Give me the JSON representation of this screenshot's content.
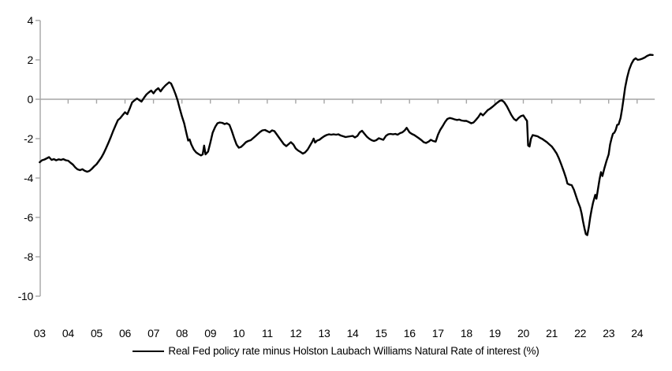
{
  "chart_data": {
    "type": "line",
    "title": "",
    "xlabel": "",
    "ylabel": "",
    "x_axis": {
      "tick_labels": [
        "03",
        "04",
        "05",
        "06",
        "07",
        "08",
        "09",
        "10",
        "11",
        "12",
        "13",
        "14",
        "15",
        "16",
        "17",
        "18",
        "19",
        "20",
        "21",
        "22",
        "23",
        "24"
      ],
      "tick_years": [
        2003,
        2004,
        2005,
        2006,
        2007,
        2008,
        2009,
        2010,
        2011,
        2012,
        2013,
        2014,
        2015,
        2016,
        2017,
        2018,
        2019,
        2020,
        2021,
        2022,
        2023,
        2024
      ],
      "min": 2003.0,
      "max": 2024.62
    },
    "y_axis": {
      "tick_labels": [
        "4",
        "2",
        "0",
        "-2",
        "-4",
        "-6",
        "-8",
        "-10"
      ],
      "ticks": [
        4,
        2,
        0,
        -2,
        -4,
        -6,
        -8,
        -10
      ],
      "min": -10,
      "max": 4
    },
    "grid": "off",
    "zero_baseline": true,
    "legend": {
      "position": "bottom-center",
      "label": "Real Fed policy rate minus Holston Laubach Williams Natural Rate of interest (%)"
    },
    "styles": {
      "line_color": "#000000",
      "axis_color": "#a6a6a6",
      "label_color": "#000000",
      "background": "#ffffff"
    },
    "series": [
      {
        "name": "Real Fed policy rate minus Holston Laubach Williams Natural Rate of interest (%)",
        "color": "#000000",
        "points": [
          [
            2003.0,
            -3.2
          ],
          [
            2003.08,
            -3.1
          ],
          [
            2003.17,
            -3.06
          ],
          [
            2003.25,
            -3.0
          ],
          [
            2003.33,
            -2.94
          ],
          [
            2003.42,
            -3.08
          ],
          [
            2003.5,
            -3.04
          ],
          [
            2003.58,
            -3.1
          ],
          [
            2003.67,
            -3.05
          ],
          [
            2003.75,
            -3.08
          ],
          [
            2003.83,
            -3.04
          ],
          [
            2003.92,
            -3.1
          ],
          [
            2004.0,
            -3.12
          ],
          [
            2004.08,
            -3.22
          ],
          [
            2004.17,
            -3.32
          ],
          [
            2004.25,
            -3.46
          ],
          [
            2004.33,
            -3.56
          ],
          [
            2004.42,
            -3.6
          ],
          [
            2004.5,
            -3.55
          ],
          [
            2004.58,
            -3.63
          ],
          [
            2004.67,
            -3.68
          ],
          [
            2004.75,
            -3.64
          ],
          [
            2004.83,
            -3.54
          ],
          [
            2004.92,
            -3.4
          ],
          [
            2005.0,
            -3.3
          ],
          [
            2005.08,
            -3.14
          ],
          [
            2005.17,
            -2.95
          ],
          [
            2005.25,
            -2.74
          ],
          [
            2005.33,
            -2.5
          ],
          [
            2005.42,
            -2.2
          ],
          [
            2005.5,
            -1.92
          ],
          [
            2005.58,
            -1.62
          ],
          [
            2005.67,
            -1.32
          ],
          [
            2005.75,
            -1.06
          ],
          [
            2005.83,
            -0.96
          ],
          [
            2005.92,
            -0.8
          ],
          [
            2006.0,
            -0.66
          ],
          [
            2006.08,
            -0.76
          ],
          [
            2006.17,
            -0.46
          ],
          [
            2006.25,
            -0.16
          ],
          [
            2006.33,
            -0.06
          ],
          [
            2006.42,
            0.04
          ],
          [
            2006.5,
            -0.04
          ],
          [
            2006.58,
            -0.12
          ],
          [
            2006.67,
            0.08
          ],
          [
            2006.75,
            0.24
          ],
          [
            2006.83,
            0.34
          ],
          [
            2006.92,
            0.44
          ],
          [
            2007.0,
            0.3
          ],
          [
            2007.08,
            0.46
          ],
          [
            2007.17,
            0.56
          ],
          [
            2007.25,
            0.4
          ],
          [
            2007.33,
            0.56
          ],
          [
            2007.42,
            0.7
          ],
          [
            2007.5,
            0.8
          ],
          [
            2007.55,
            0.86
          ],
          [
            2007.62,
            0.8
          ],
          [
            2007.7,
            0.54
          ],
          [
            2007.78,
            0.24
          ],
          [
            2007.85,
            -0.06
          ],
          [
            2007.92,
            -0.46
          ],
          [
            2008.0,
            -0.86
          ],
          [
            2008.08,
            -1.22
          ],
          [
            2008.17,
            -1.8
          ],
          [
            2008.22,
            -2.1
          ],
          [
            2008.27,
            -2.04
          ],
          [
            2008.33,
            -2.3
          ],
          [
            2008.42,
            -2.56
          ],
          [
            2008.5,
            -2.7
          ],
          [
            2008.58,
            -2.78
          ],
          [
            2008.67,
            -2.85
          ],
          [
            2008.73,
            -2.8
          ],
          [
            2008.78,
            -2.35
          ],
          [
            2008.83,
            -2.8
          ],
          [
            2008.92,
            -2.66
          ],
          [
            2009.0,
            -2.2
          ],
          [
            2009.08,
            -1.7
          ],
          [
            2009.17,
            -1.4
          ],
          [
            2009.25,
            -1.22
          ],
          [
            2009.33,
            -1.18
          ],
          [
            2009.42,
            -1.2
          ],
          [
            2009.5,
            -1.26
          ],
          [
            2009.58,
            -1.22
          ],
          [
            2009.67,
            -1.3
          ],
          [
            2009.75,
            -1.6
          ],
          [
            2009.83,
            -1.95
          ],
          [
            2009.92,
            -2.3
          ],
          [
            2010.0,
            -2.46
          ],
          [
            2010.08,
            -2.42
          ],
          [
            2010.17,
            -2.3
          ],
          [
            2010.25,
            -2.18
          ],
          [
            2010.33,
            -2.12
          ],
          [
            2010.42,
            -2.08
          ],
          [
            2010.5,
            -1.98
          ],
          [
            2010.58,
            -1.88
          ],
          [
            2010.67,
            -1.76
          ],
          [
            2010.75,
            -1.66
          ],
          [
            2010.83,
            -1.58
          ],
          [
            2010.92,
            -1.56
          ],
          [
            2011.0,
            -1.62
          ],
          [
            2011.08,
            -1.68
          ],
          [
            2011.17,
            -1.58
          ],
          [
            2011.25,
            -1.62
          ],
          [
            2011.33,
            -1.78
          ],
          [
            2011.42,
            -1.96
          ],
          [
            2011.5,
            -2.12
          ],
          [
            2011.58,
            -2.28
          ],
          [
            2011.67,
            -2.38
          ],
          [
            2011.75,
            -2.28
          ],
          [
            2011.83,
            -2.18
          ],
          [
            2011.92,
            -2.3
          ],
          [
            2012.0,
            -2.5
          ],
          [
            2012.08,
            -2.6
          ],
          [
            2012.17,
            -2.68
          ],
          [
            2012.25,
            -2.76
          ],
          [
            2012.33,
            -2.7
          ],
          [
            2012.42,
            -2.55
          ],
          [
            2012.5,
            -2.35
          ],
          [
            2012.58,
            -2.15
          ],
          [
            2012.63,
            -2.0
          ],
          [
            2012.68,
            -2.2
          ],
          [
            2012.75,
            -2.1
          ],
          [
            2012.83,
            -2.06
          ],
          [
            2012.92,
            -1.96
          ],
          [
            2013.0,
            -1.88
          ],
          [
            2013.08,
            -1.82
          ],
          [
            2013.17,
            -1.78
          ],
          [
            2013.25,
            -1.8
          ],
          [
            2013.33,
            -1.78
          ],
          [
            2013.42,
            -1.8
          ],
          [
            2013.5,
            -1.78
          ],
          [
            2013.58,
            -1.84
          ],
          [
            2013.67,
            -1.88
          ],
          [
            2013.75,
            -1.92
          ],
          [
            2013.83,
            -1.9
          ],
          [
            2013.92,
            -1.88
          ],
          [
            2014.0,
            -1.86
          ],
          [
            2014.08,
            -1.94
          ],
          [
            2014.17,
            -1.86
          ],
          [
            2014.25,
            -1.68
          ],
          [
            2014.33,
            -1.6
          ],
          [
            2014.42,
            -1.76
          ],
          [
            2014.5,
            -1.9
          ],
          [
            2014.58,
            -2.0
          ],
          [
            2014.67,
            -2.08
          ],
          [
            2014.75,
            -2.12
          ],
          [
            2014.83,
            -2.08
          ],
          [
            2014.92,
            -1.98
          ],
          [
            2015.0,
            -2.02
          ],
          [
            2015.08,
            -2.06
          ],
          [
            2015.17,
            -1.86
          ],
          [
            2015.25,
            -1.78
          ],
          [
            2015.33,
            -1.76
          ],
          [
            2015.42,
            -1.78
          ],
          [
            2015.5,
            -1.76
          ],
          [
            2015.58,
            -1.8
          ],
          [
            2015.67,
            -1.72
          ],
          [
            2015.75,
            -1.68
          ],
          [
            2015.83,
            -1.58
          ],
          [
            2015.9,
            -1.45
          ],
          [
            2016.0,
            -1.68
          ],
          [
            2016.08,
            -1.76
          ],
          [
            2016.17,
            -1.82
          ],
          [
            2016.25,
            -1.9
          ],
          [
            2016.33,
            -1.98
          ],
          [
            2016.42,
            -2.08
          ],
          [
            2016.5,
            -2.18
          ],
          [
            2016.58,
            -2.22
          ],
          [
            2016.67,
            -2.15
          ],
          [
            2016.75,
            -2.06
          ],
          [
            2016.83,
            -2.12
          ],
          [
            2016.92,
            -2.15
          ],
          [
            2017.0,
            -1.8
          ],
          [
            2017.08,
            -1.55
          ],
          [
            2017.17,
            -1.35
          ],
          [
            2017.25,
            -1.15
          ],
          [
            2017.33,
            -1.0
          ],
          [
            2017.42,
            -0.95
          ],
          [
            2017.5,
            -0.98
          ],
          [
            2017.58,
            -1.02
          ],
          [
            2017.67,
            -1.05
          ],
          [
            2017.75,
            -1.03
          ],
          [
            2017.83,
            -1.08
          ],
          [
            2017.92,
            -1.1
          ],
          [
            2018.0,
            -1.1
          ],
          [
            2018.08,
            -1.15
          ],
          [
            2018.17,
            -1.22
          ],
          [
            2018.25,
            -1.18
          ],
          [
            2018.33,
            -1.05
          ],
          [
            2018.42,
            -0.9
          ],
          [
            2018.5,
            -0.72
          ],
          [
            2018.58,
            -0.82
          ],
          [
            2018.67,
            -0.68
          ],
          [
            2018.75,
            -0.55
          ],
          [
            2018.83,
            -0.48
          ],
          [
            2018.92,
            -0.38
          ],
          [
            2019.0,
            -0.28
          ],
          [
            2019.08,
            -0.18
          ],
          [
            2019.17,
            -0.08
          ],
          [
            2019.25,
            -0.05
          ],
          [
            2019.33,
            -0.15
          ],
          [
            2019.42,
            -0.35
          ],
          [
            2019.5,
            -0.58
          ],
          [
            2019.58,
            -0.8
          ],
          [
            2019.67,
            -1.0
          ],
          [
            2019.75,
            -1.08
          ],
          [
            2019.83,
            -0.95
          ],
          [
            2019.92,
            -0.85
          ],
          [
            2020.0,
            -0.82
          ],
          [
            2020.08,
            -1.0
          ],
          [
            2020.13,
            -1.1
          ],
          [
            2020.17,
            -2.35
          ],
          [
            2020.22,
            -2.4
          ],
          [
            2020.27,
            -2.0
          ],
          [
            2020.33,
            -1.82
          ],
          [
            2020.42,
            -1.85
          ],
          [
            2020.5,
            -1.88
          ],
          [
            2020.58,
            -1.95
          ],
          [
            2020.67,
            -2.02
          ],
          [
            2020.75,
            -2.1
          ],
          [
            2020.83,
            -2.18
          ],
          [
            2020.92,
            -2.3
          ],
          [
            2021.0,
            -2.4
          ],
          [
            2021.08,
            -2.55
          ],
          [
            2021.17,
            -2.75
          ],
          [
            2021.25,
            -3.0
          ],
          [
            2021.33,
            -3.3
          ],
          [
            2021.42,
            -3.65
          ],
          [
            2021.5,
            -4.0
          ],
          [
            2021.55,
            -4.28
          ],
          [
            2021.63,
            -4.34
          ],
          [
            2021.7,
            -4.36
          ],
          [
            2021.78,
            -4.6
          ],
          [
            2021.85,
            -4.9
          ],
          [
            2021.92,
            -5.2
          ],
          [
            2022.0,
            -5.5
          ],
          [
            2022.05,
            -5.8
          ],
          [
            2022.1,
            -6.2
          ],
          [
            2022.15,
            -6.55
          ],
          [
            2022.2,
            -6.85
          ],
          [
            2022.25,
            -6.9
          ],
          [
            2022.3,
            -6.5
          ],
          [
            2022.35,
            -6.0
          ],
          [
            2022.4,
            -5.6
          ],
          [
            2022.45,
            -5.25
          ],
          [
            2022.5,
            -5.0
          ],
          [
            2022.53,
            -4.85
          ],
          [
            2022.57,
            -5.05
          ],
          [
            2022.63,
            -4.5
          ],
          [
            2022.68,
            -4.05
          ],
          [
            2022.73,
            -3.7
          ],
          [
            2022.78,
            -3.9
          ],
          [
            2022.85,
            -3.5
          ],
          [
            2022.92,
            -3.15
          ],
          [
            2023.0,
            -2.8
          ],
          [
            2023.05,
            -2.3
          ],
          [
            2023.1,
            -2.0
          ],
          [
            2023.15,
            -1.75
          ],
          [
            2023.2,
            -1.7
          ],
          [
            2023.25,
            -1.55
          ],
          [
            2023.3,
            -1.3
          ],
          [
            2023.35,
            -1.28
          ],
          [
            2023.42,
            -0.95
          ],
          [
            2023.47,
            -0.5
          ],
          [
            2023.52,
            0.0
          ],
          [
            2023.58,
            0.6
          ],
          [
            2023.65,
            1.1
          ],
          [
            2023.72,
            1.5
          ],
          [
            2023.8,
            1.8
          ],
          [
            2023.88,
            2.0
          ],
          [
            2023.95,
            2.08
          ],
          [
            2024.02,
            2.0
          ],
          [
            2024.1,
            2.02
          ],
          [
            2024.18,
            2.06
          ],
          [
            2024.27,
            2.12
          ],
          [
            2024.35,
            2.2
          ],
          [
            2024.45,
            2.26
          ],
          [
            2024.55,
            2.25
          ]
        ]
      }
    ]
  }
}
